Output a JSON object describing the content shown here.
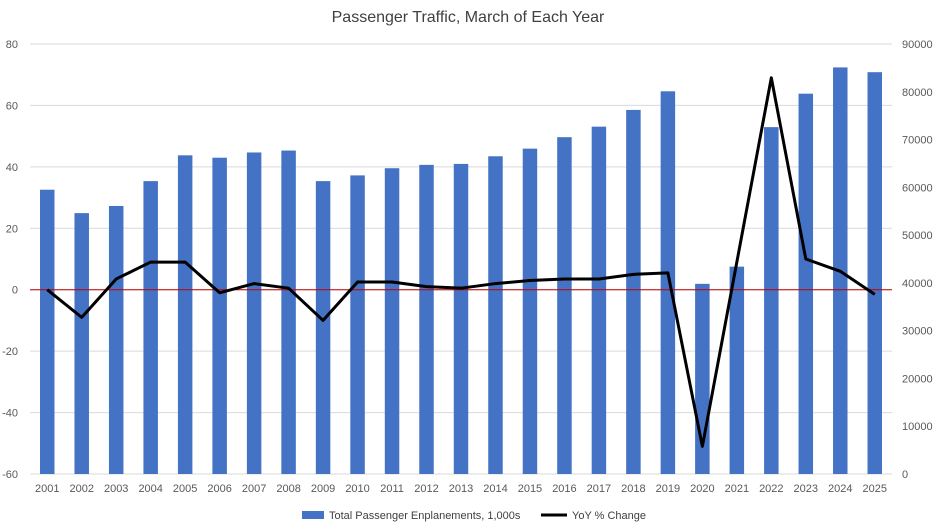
{
  "chart_data": {
    "type": "bar",
    "title": "Passenger Traffic, March of Each Year",
    "categories": [
      "2001",
      "2002",
      "2003",
      "2004",
      "2005",
      "2006",
      "2007",
      "2008",
      "2009",
      "2010",
      "2011",
      "2012",
      "2013",
      "2014",
      "2015",
      "2016",
      "2017",
      "2018",
      "2019",
      "2020",
      "2021",
      "2022",
      "2023",
      "2024",
      "2025"
    ],
    "series": [
      {
        "name": "Total Passenger Enplanements, 1,000s",
        "type": "bar",
        "axis": "right",
        "color": "#4472C4",
        "values": [
          59500,
          54600,
          56100,
          61300,
          66700,
          66200,
          67300,
          67700,
          61300,
          62500,
          64000,
          64700,
          64900,
          66500,
          68100,
          70500,
          72700,
          76200,
          80100,
          39800,
          43400,
          72600,
          79600,
          85100,
          84100
        ]
      },
      {
        "name": "YoY % Change",
        "type": "line",
        "axis": "left",
        "color": "#000000",
        "values": [
          0,
          -9,
          3.5,
          9,
          9,
          -1,
          2,
          0.5,
          -10,
          2.5,
          2.5,
          1,
          0.5,
          2,
          3,
          3.5,
          3.5,
          5,
          5.5,
          -51,
          9,
          69,
          10,
          6,
          -1.5
        ]
      }
    ],
    "y_left": {
      "min": -60,
      "max": 80,
      "step": 20,
      "ticks": [
        "-60",
        "-40",
        "-20",
        "0",
        "20",
        "40",
        "60",
        "80"
      ]
    },
    "y_right": {
      "min": 0,
      "max": 90000,
      "step": 10000,
      "ticks": [
        "0",
        "10000",
        "20000",
        "30000",
        "40000",
        "50000",
        "60000",
        "70000",
        "80000",
        "90000"
      ]
    },
    "zero_line_color": "#C00000",
    "grid": true,
    "legend": {
      "placement": "bottom"
    }
  }
}
